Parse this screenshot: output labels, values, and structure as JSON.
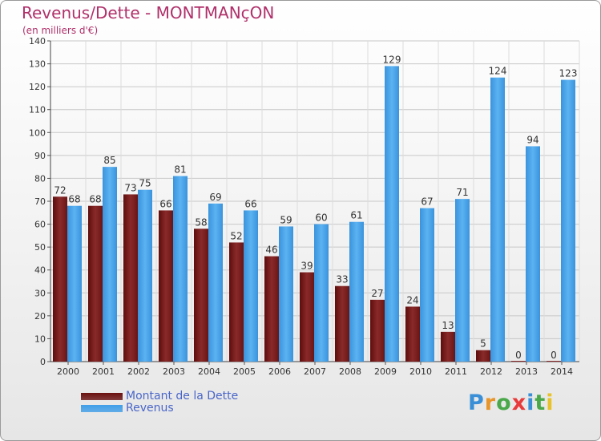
{
  "title": "Revenus/Dette - MONTMANçON",
  "subtitle": "(en milliers d'€)",
  "colors": {
    "dette": "#7a1e1e",
    "revenus": "#3f9ee8",
    "title": "#b0306a",
    "legend_text": "#4a66c8"
  },
  "legend": {
    "items": [
      {
        "label": "Montant de la Dette",
        "color": "#6a1010"
      },
      {
        "label": "Revenus",
        "color": "#3f9ee8"
      }
    ]
  },
  "logo": {
    "letters": [
      "P",
      "r",
      "o",
      "x",
      "i",
      "t",
      "i"
    ],
    "colors": [
      "#3a8fd6",
      "#e8952a",
      "#4aa84a",
      "#e83a3a",
      "#3a8fd6",
      "#4aa84a",
      "#e8c22a"
    ]
  },
  "chart_data": {
    "type": "bar",
    "categories": [
      "2000",
      "2001",
      "2002",
      "2003",
      "2004",
      "2005",
      "2006",
      "2007",
      "2008",
      "2009",
      "2010",
      "2011",
      "2012",
      "2013",
      "2014"
    ],
    "series": [
      {
        "name": "Montant de la Dette",
        "values": [
          72,
          68,
          73,
          66,
          58,
          52,
          46,
          39,
          33,
          27,
          24,
          13,
          5,
          0,
          0
        ]
      },
      {
        "name": "Revenus",
        "values": [
          68,
          85,
          75,
          81,
          69,
          66,
          59,
          60,
          61,
          129,
          67,
          71,
          124,
          94,
          123
        ]
      }
    ],
    "ylim": [
      0,
      140
    ],
    "yticks": [
      0,
      10,
      20,
      30,
      40,
      50,
      60,
      70,
      80,
      90,
      100,
      110,
      120,
      130,
      140
    ],
    "grid": true,
    "legend_position": "bottom-left"
  }
}
